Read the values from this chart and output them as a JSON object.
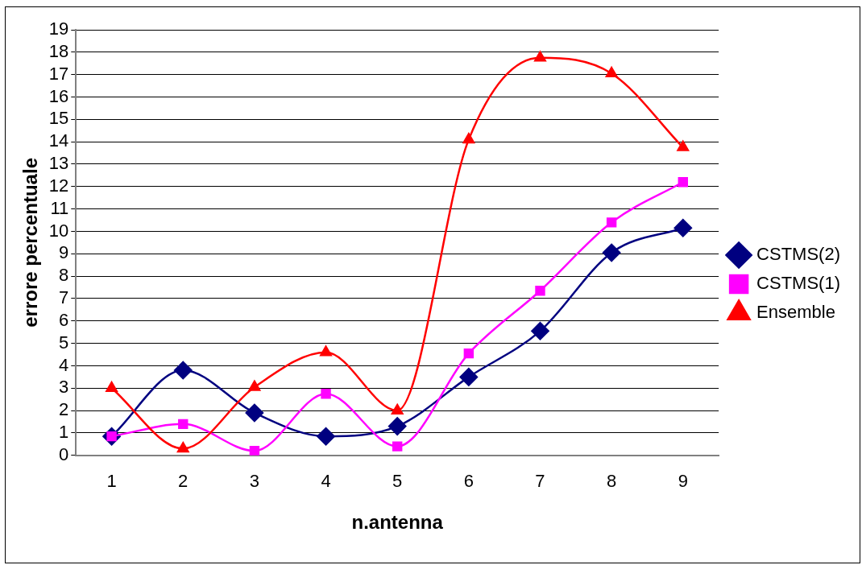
{
  "chart_data": {
    "type": "line",
    "xlabel": "n.antenna",
    "ylabel": "errore percentuale",
    "categories": [
      "1",
      "2",
      "3",
      "4",
      "5",
      "6",
      "7",
      "8",
      "9"
    ],
    "series": [
      {
        "name": "CSTMS(2)",
        "color": "#000080",
        "marker": "diamond",
        "values": [
          0.85,
          3.8,
          1.9,
          0.85,
          1.3,
          3.5,
          5.55,
          9.05,
          10.15
        ]
      },
      {
        "name": "CSTMS(1)",
        "color": "#ff00ff",
        "marker": "square",
        "values": [
          0.85,
          1.4,
          0.2,
          2.75,
          0.4,
          4.55,
          7.35,
          10.4,
          12.2
        ]
      },
      {
        "name": "Ensemble",
        "color": "#ff0000",
        "marker": "triangle",
        "values": [
          3.0,
          0.3,
          3.05,
          4.6,
          2.0,
          14.1,
          17.75,
          17.05,
          13.75
        ]
      }
    ],
    "ylim": [
      0,
      19
    ],
    "yticks": [
      0,
      1,
      2,
      3,
      4,
      5,
      6,
      7,
      8,
      9,
      10,
      11,
      12,
      13,
      14,
      15,
      16,
      17,
      18,
      19
    ],
    "grid": "y",
    "legend": "right",
    "line_style": "solid"
  }
}
